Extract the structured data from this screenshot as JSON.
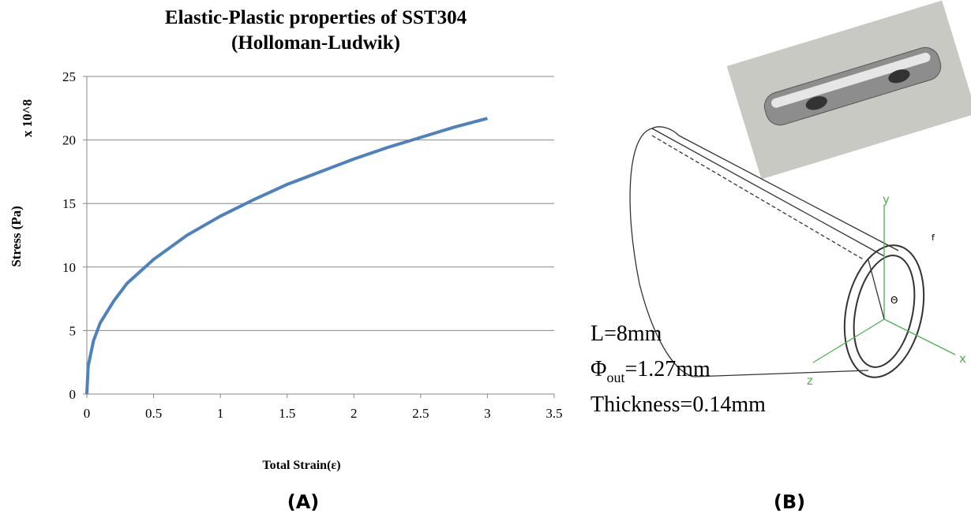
{
  "chart_data": {
    "type": "line",
    "title": "Elastic-Plastic properties of SST304",
    "subtitle": "(Holloman-Ludwik)",
    "y_label": "Stress (Pa)",
    "y_multiplier": "x 10^8",
    "x_label": "Total Strain(ε)",
    "x": [
      0,
      0.01,
      0.05,
      0.1,
      0.2,
      0.3,
      0.5,
      0.75,
      1,
      1.25,
      1.5,
      1.75,
      2,
      2.25,
      2.5,
      2.75,
      3
    ],
    "values": [
      0,
      2.2,
      4.2,
      5.6,
      7.3,
      8.7,
      10.6,
      12.5,
      14,
      15.3,
      16.5,
      17.5,
      18.5,
      19.4,
      20.2,
      21.0,
      21.7
    ],
    "color": "#4f81bd",
    "xlim": [
      0,
      3.5
    ],
    "xticks": [
      0,
      0.5,
      1,
      1.5,
      2,
      2.5,
      3,
      3.5
    ],
    "ylim": [
      0,
      25
    ],
    "yticks": [
      0,
      5,
      10,
      15,
      20,
      25
    ],
    "grid": true
  },
  "panels": {
    "left": "(A)",
    "right": "(B)"
  },
  "diagram": {
    "length": "L=8mm",
    "phi": "Φ",
    "phi_sub": "out",
    "phi_value": "=1.27mm",
    "thickness": "Thickness=0.14mm",
    "axis_x": "x",
    "axis_y": "y",
    "axis_z": "z",
    "force": "f",
    "angle": "Θ"
  }
}
